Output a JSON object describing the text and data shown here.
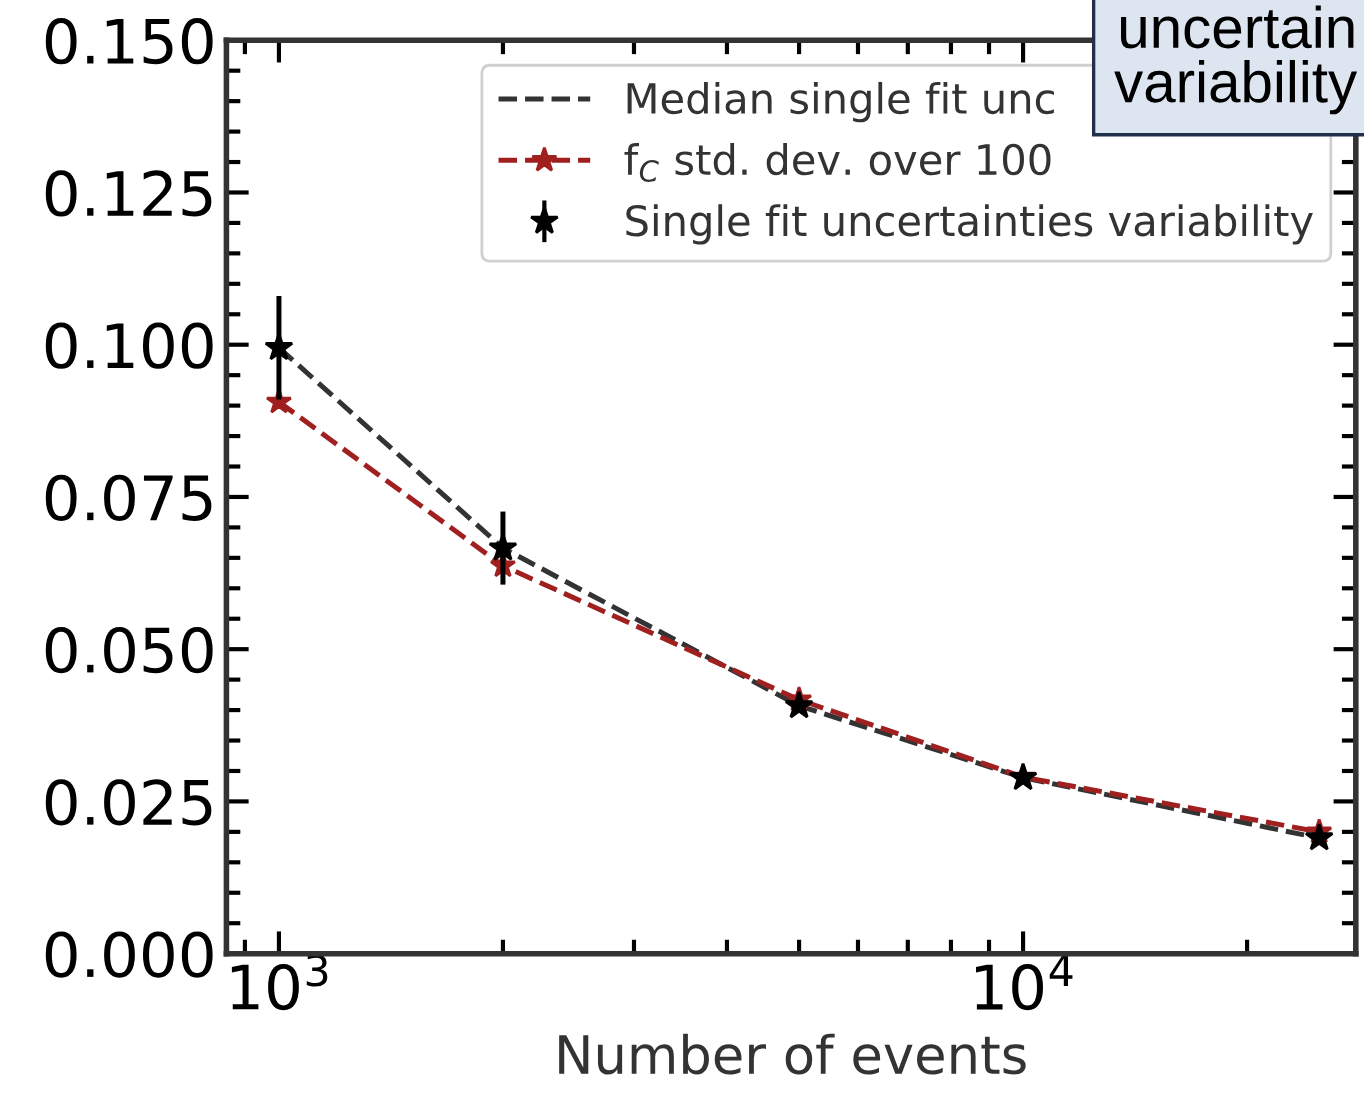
{
  "chart_data": {
    "type": "line",
    "xlabel": "Number of events",
    "x": [
      1000,
      2000,
      5000,
      10000,
      25000
    ],
    "series": [
      {
        "name": "Median single fit unc",
        "color": "#333333",
        "marker": "none",
        "line_style": "dashed",
        "values": [
          0.0995,
          0.0666,
          0.0407,
          0.0289,
          0.019
        ]
      },
      {
        "name": "f$_{C}$ std. dev. over 100",
        "color": "#a02020",
        "marker": "star",
        "line_style": "dashed",
        "values": [
          0.0906,
          0.0637,
          0.0417,
          0.029,
          0.02
        ]
      },
      {
        "name": "Single fit uncertainties variability",
        "color": "#000000",
        "type": "scatter",
        "marker": "star",
        "values": [
          0.0995,
          0.0666,
          0.0407,
          0.0289,
          0.019
        ],
        "errors": [
          0.0085,
          0.006,
          null,
          null,
          null
        ]
      }
    ],
    "log": "x",
    "xlim": [
      850,
      28000
    ],
    "xticks": [
      {
        "value": 1000,
        "label": "10$^{3}$"
      },
      {
        "value": 10000,
        "label": "10$^{4}$"
      }
    ],
    "ylim": [
      0,
      0.15
    ],
    "yticks": [
      {
        "value": 0,
        "label": "0.000"
      },
      {
        "value": 0.025,
        "label": "0.025"
      },
      {
        "value": 0.05,
        "label": "0.050"
      },
      {
        "value": 0.075,
        "label": "0.075"
      },
      {
        "value": 0.1,
        "label": "0.100"
      },
      {
        "value": 0.125,
        "label": "0.125"
      },
      {
        "value": 0.15,
        "label": "0.150"
      }
    ],
    "legend": "top right",
    "grid": false,
    "annotations": [
      "uncertain\nvariability"
    ]
  }
}
